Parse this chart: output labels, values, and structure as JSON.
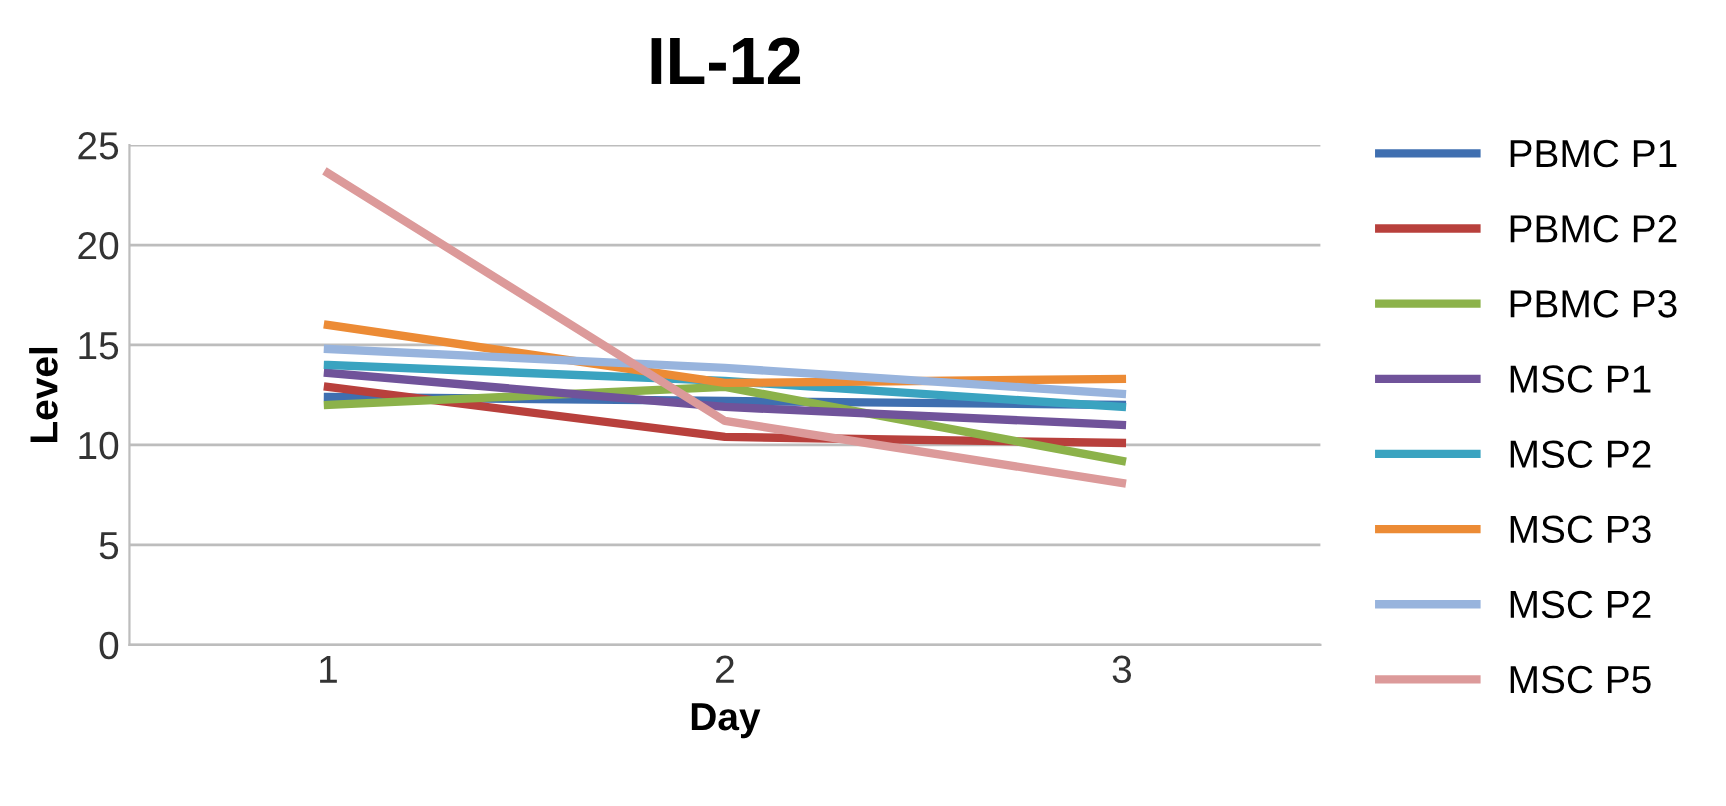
{
  "chart_data": {
    "type": "line",
    "title": "IL-12",
    "xlabel": "Day",
    "ylabel": "Level",
    "categories": [
      "1",
      "2",
      "3"
    ],
    "series": [
      {
        "name": "PBMC P1",
        "color": "#3f6fb0",
        "values": [
          12.4,
          12.2,
          12.0
        ]
      },
      {
        "name": "PBMC P2",
        "color": "#b8403c",
        "values": [
          12.9,
          10.4,
          10.1
        ]
      },
      {
        "name": "PBMC P3",
        "color": "#8cb24a",
        "values": [
          12.0,
          12.9,
          9.2
        ]
      },
      {
        "name": "MSC P1",
        "color": "#70539a",
        "values": [
          13.6,
          11.9,
          11.0
        ]
      },
      {
        "name": "MSC P2",
        "color": "#3aa3c0",
        "values": [
          14.0,
          13.2,
          11.9
        ]
      },
      {
        "name": "MSC P3",
        "color": "#ec8b35",
        "values": [
          16.0,
          13.1,
          13.3
        ]
      },
      {
        "name": "MSC P2",
        "color": "#98b4dd",
        "values": [
          14.8,
          13.85,
          12.55
        ]
      },
      {
        "name": "MSC P5",
        "color": "#dc9a9a",
        "values": [
          23.6,
          11.2,
          8.1
        ]
      }
    ],
    "ylim": [
      0,
      25
    ],
    "yticks": [
      0,
      5,
      10,
      15,
      20,
      25
    ],
    "grid": "y",
    "legend": "right",
    "marker": "none",
    "line_style": "solid"
  }
}
